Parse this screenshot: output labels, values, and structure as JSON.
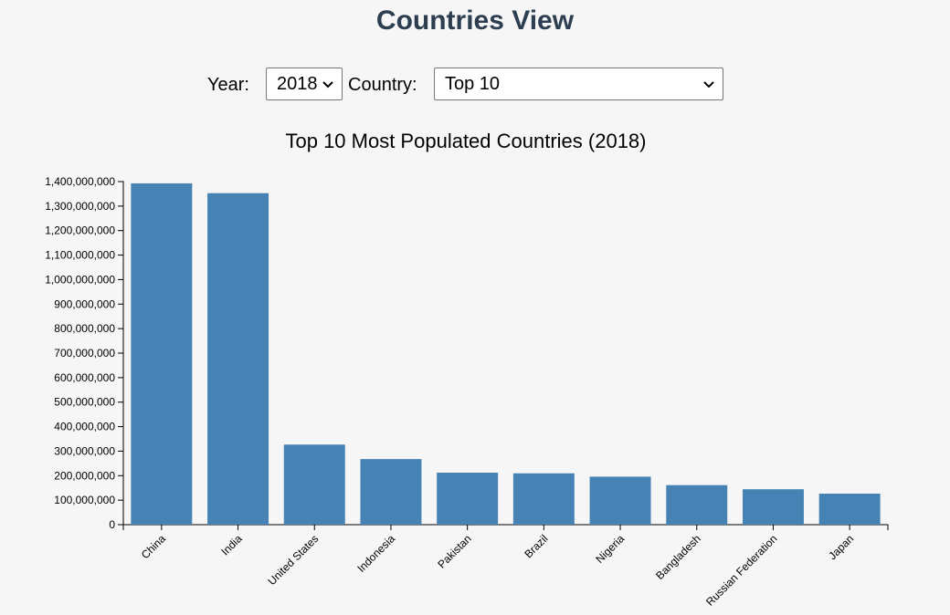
{
  "page": {
    "title": "Countries View"
  },
  "controls": {
    "year_label": "Year:",
    "year_value": "2018",
    "country_label": "Country:",
    "country_value": "Top 10"
  },
  "colors": {
    "bar": "#4682b4",
    "heading": "#2c3e50"
  },
  "chart_data": {
    "type": "bar",
    "title": "Top 10 Most Populated Countries (2018)",
    "xlabel": "",
    "ylabel": "",
    "categories": [
      "China",
      "India",
      "United States",
      "Indonesia",
      "Pakistan",
      "Brazil",
      "Nigeria",
      "Bangladesh",
      "Russian Federation",
      "Japan"
    ],
    "values": [
      1392730000,
      1352617328,
      326687501,
      267663435,
      212215030,
      209469333,
      195874740,
      161356039,
      144477860,
      126529100
    ],
    "ylim": [
      0,
      1400000000
    ],
    "yticks": [
      0,
      100000000,
      200000000,
      300000000,
      400000000,
      500000000,
      600000000,
      700000000,
      800000000,
      900000000,
      1000000000,
      1100000000,
      1200000000,
      1300000000,
      1400000000
    ],
    "grid": false,
    "legend": "none"
  }
}
